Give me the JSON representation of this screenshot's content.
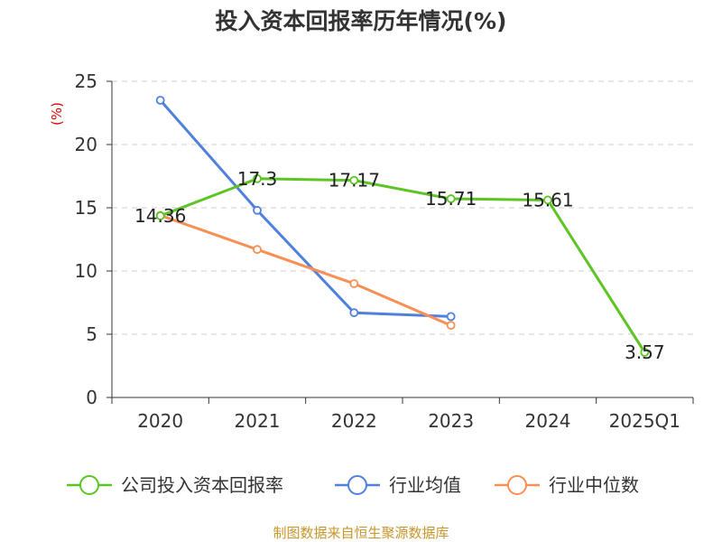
{
  "colors": {
    "series": [
      "#5cc524",
      "#4f81dc",
      "#f88f55"
    ],
    "grid": "#cccccc",
    "axis": "#333333",
    "unit": "#dd0000",
    "source": "#c8952c"
  },
  "chart_data": {
    "type": "line",
    "title": "投入资本回报率历年情况(%)",
    "unit_label": "(%)",
    "categories": [
      "2020",
      "2021",
      "2022",
      "2023",
      "2024",
      "2025Q1"
    ],
    "ylim": [
      0,
      25
    ],
    "yticks": [
      0,
      5,
      10,
      15,
      20,
      25
    ],
    "grid": true,
    "grid_style": "dashed",
    "legend_position": "bottom",
    "series": [
      {
        "name": "公司投入资本回报率",
        "values": [
          14.36,
          17.3,
          17.17,
          15.71,
          15.61,
          3.57
        ],
        "labels": [
          "14.36",
          "17.3",
          "17.17",
          "15.71",
          "15.61",
          "3.57"
        ]
      },
      {
        "name": "行业均值",
        "values": [
          23.5,
          14.8,
          6.7,
          6.4,
          null,
          null
        ]
      },
      {
        "name": "行业中位数",
        "values": [
          14.4,
          11.7,
          9.0,
          5.7,
          null,
          null
        ]
      }
    ]
  },
  "source_text": "制图数据来自恒生聚源数据库"
}
